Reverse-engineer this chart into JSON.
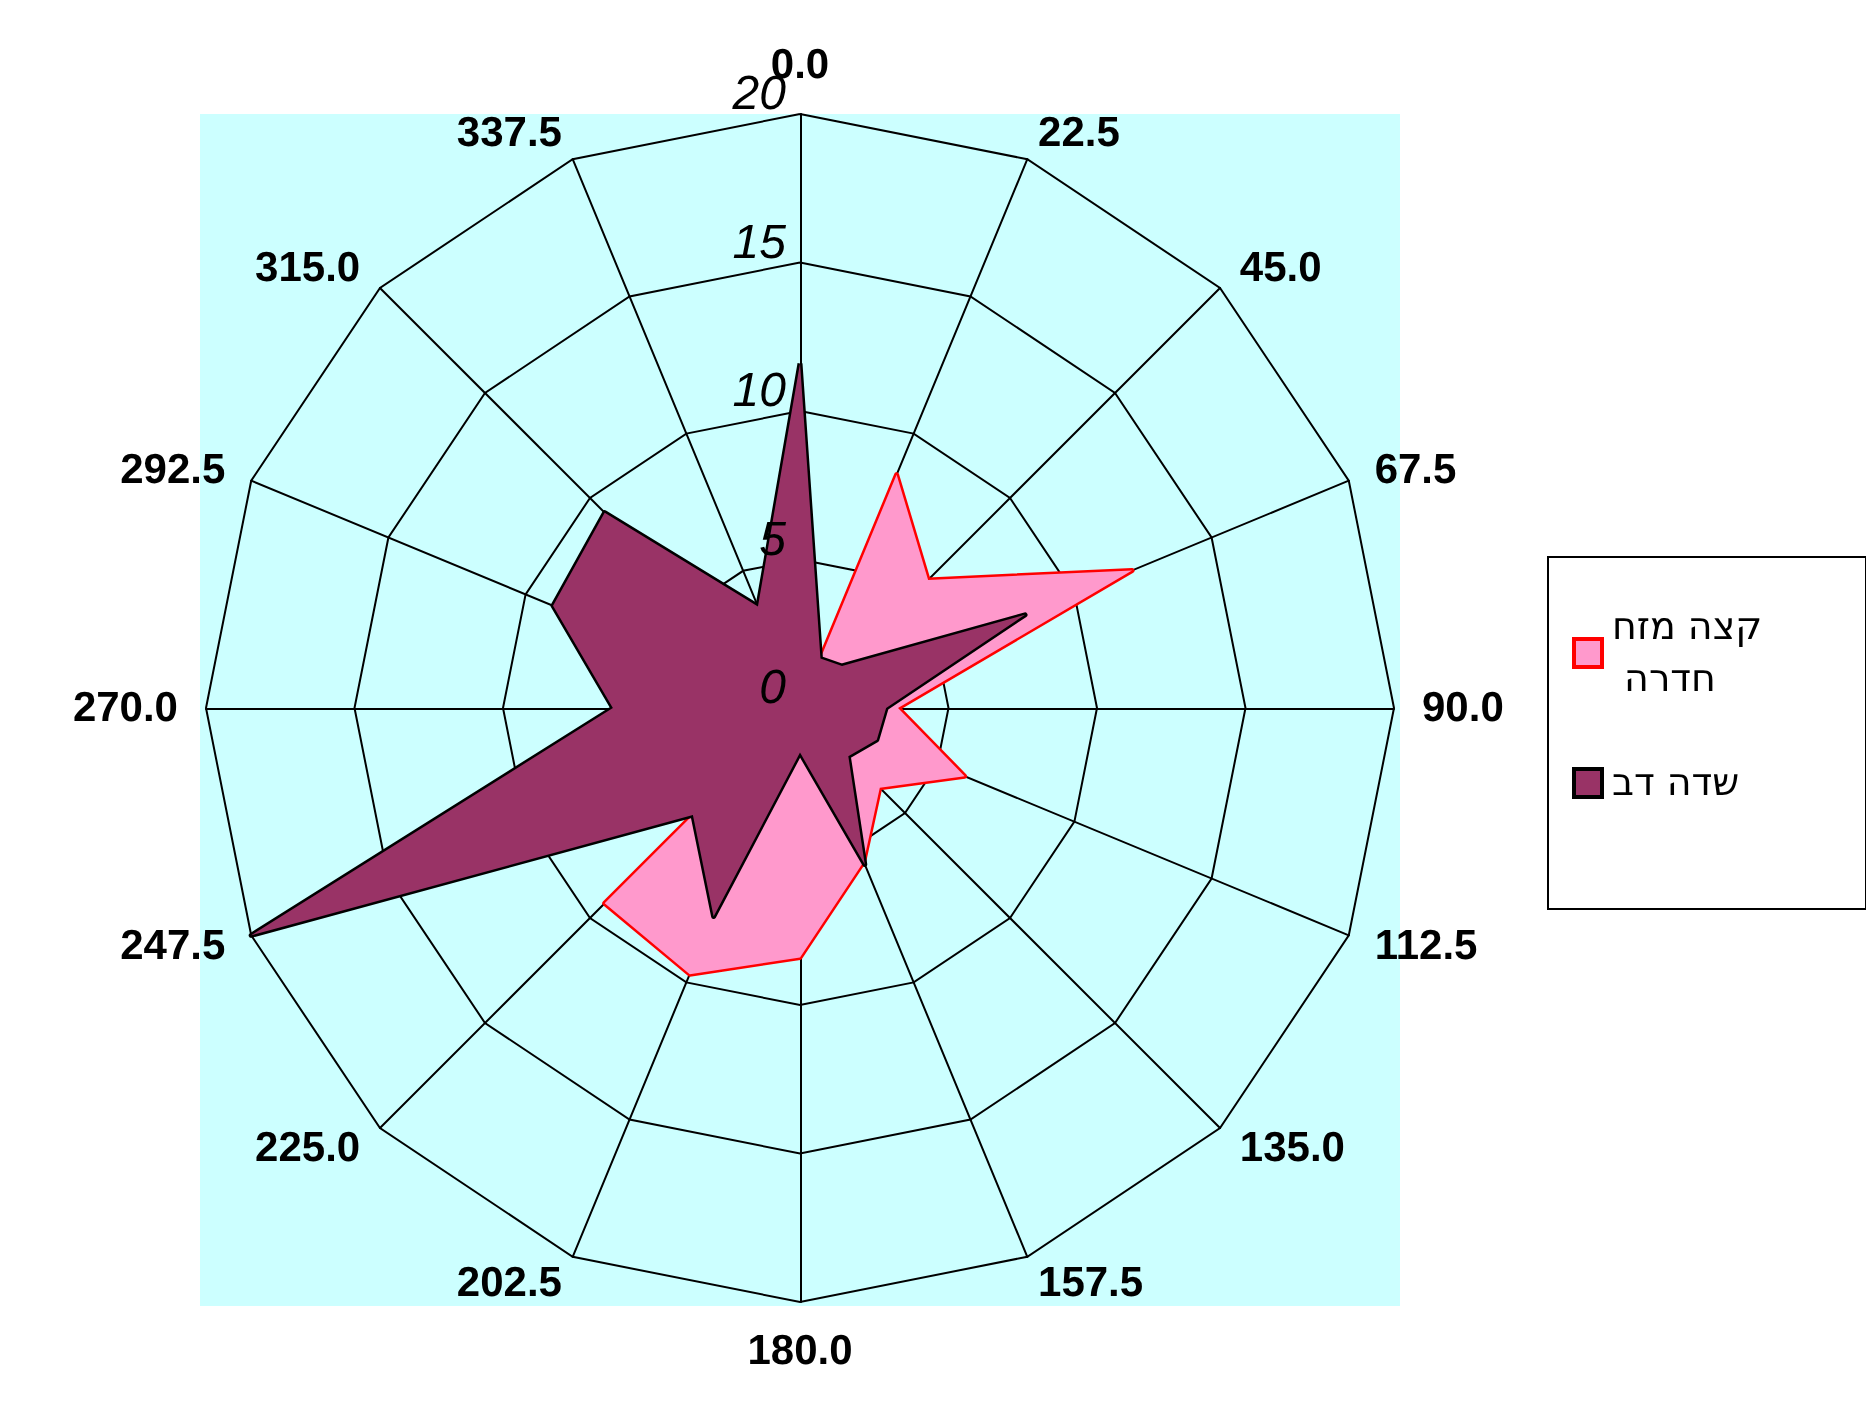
{
  "chart_data": {
    "type": "radar",
    "categories": [
      "0.0",
      "22.5",
      "45.0",
      "67.5",
      "90.0",
      "112.5",
      "135.0",
      "157.5",
      "180.0",
      "202.5",
      "225.0",
      "247.5",
      "270.0",
      "292.5",
      "315.0",
      "337.5"
    ],
    "series": [
      {
        "name": "קצה מזח חדרה",
        "color": "#ff99cc",
        "values": [
          null,
          8.5,
          6.1,
          12.1,
          3.3,
          6.0,
          3.8,
          5.6,
          8.4,
          9.7,
          9.3,
          null,
          null,
          null,
          null,
          null
        ]
      },
      {
        "name": "שדה דב",
        "color": "#993366",
        "values": [
          11.6,
          1.8,
          2.0,
          8.2,
          2.9,
          2.8,
          2.3,
          5.7,
          1.5,
          7.6,
          5.1,
          20,
          6.3,
          9.0,
          9.3,
          3.7
        ]
      }
    ],
    "ylim": [
      0,
      20
    ],
    "yticks": [
      0,
      5,
      10,
      15,
      20
    ],
    "grid": true,
    "legend": "right",
    "marker": "none"
  }
}
